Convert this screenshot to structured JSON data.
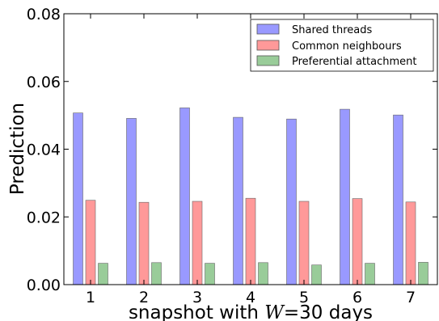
{
  "chart_data": {
    "type": "bar",
    "categories": [
      "1",
      "2",
      "3",
      "4",
      "5",
      "6",
      "7"
    ],
    "series": [
      {
        "name": "Shared threads",
        "color": "#9999ff",
        "values": [
          0.0507,
          0.0491,
          0.0522,
          0.0494,
          0.0489,
          0.0518,
          0.0501
        ]
      },
      {
        "name": "Common neighbours",
        "color": "#ff9999",
        "values": [
          0.0249,
          0.0243,
          0.0246,
          0.0255,
          0.0246,
          0.0254,
          0.0244
        ]
      },
      {
        "name": "Preferential attachment",
        "color": "#99cc99",
        "values": [
          0.0063,
          0.0065,
          0.0063,
          0.0065,
          0.0058,
          0.0063,
          0.0066
        ]
      }
    ],
    "ylim": [
      0,
      0.08
    ],
    "yticks": [
      "0.00",
      "0.02",
      "0.04",
      "0.06",
      "0.08"
    ],
    "ylabel": "Prediction",
    "xlabel": {
      "prefix": "snapshot with ",
      "variable": "W",
      "suffix": "=30 days"
    },
    "legend_position": "top-right",
    "grid": false
  }
}
